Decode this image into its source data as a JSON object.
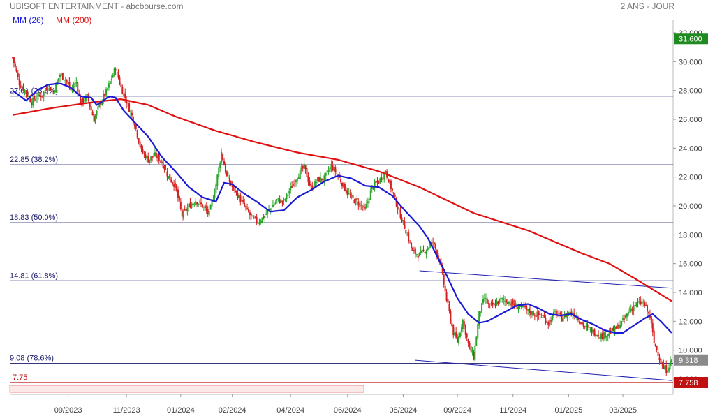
{
  "header": {
    "title": "UBISOFT ENTERTAINMENT - abcbourse.com",
    "period": "2 ANS - JOUR"
  },
  "legend": {
    "ma26_label": "MM (26)",
    "ma200_label": "MM (200)"
  },
  "colors": {
    "ma26": "#1a1ad6",
    "ma200": "#e01010",
    "up": "#2aa52a",
    "down": "#d42020",
    "fib": "#1a1a6a",
    "last_price_badge": "#8a8a8a",
    "high_badge": "#1f8a1f",
    "low_badge": "#c01010"
  },
  "chart_data": {
    "type": "candlestick",
    "title": "UBISOFT ENTERTAINMENT",
    "x_ticks": [
      "09/2023",
      "11/2023",
      "01/2024",
      "02/2024",
      "04/2024",
      "06/2024",
      "08/2024",
      "09/2024",
      "11/2024",
      "01/2025",
      "03/2025"
    ],
    "y_ticks": [
      "32.000",
      "30.000",
      "28.000",
      "26.000",
      "24.000",
      "22.000",
      "20.000",
      "18.000",
      "16.000",
      "14.000",
      "12.000",
      "10.000",
      "8.000"
    ],
    "ylim": [
      7.0,
      33.0
    ],
    "fibonacci_levels": [
      {
        "value": 27.61,
        "label": "27.61",
        "pct": "(23.6%)"
      },
      {
        "value": 22.85,
        "label": "22.85",
        "pct": "(38.2%)"
      },
      {
        "value": 18.83,
        "label": "18.83",
        "pct": "(50.0%)"
      },
      {
        "value": 14.81,
        "label": "14.81",
        "pct": "(61.8%)"
      },
      {
        "value": 9.08,
        "label": "9.08",
        "pct": "(78.6%)"
      }
    ],
    "support_level": {
      "value": 7.75,
      "label": "7.75"
    },
    "price_badges": [
      {
        "value": 31.6,
        "label": "31.600",
        "kind": "high"
      },
      {
        "value": 9.318,
        "label": "9.318",
        "kind": "last"
      },
      {
        "value": 7.758,
        "label": "7.758",
        "kind": "low"
      }
    ],
    "price_path": [
      [
        0,
        30.3
      ],
      [
        5,
        28.5
      ],
      [
        10,
        27.9
      ],
      [
        14,
        27.2
      ],
      [
        18,
        27.6
      ],
      [
        22,
        27.7
      ],
      [
        26,
        28.4
      ],
      [
        30,
        27.9
      ],
      [
        35,
        29.1
      ],
      [
        39,
        28.8
      ],
      [
        43,
        28.0
      ],
      [
        47,
        28.6
      ],
      [
        50,
        27.1
      ],
      [
        55,
        27.6
      ],
      [
        60,
        26.0
      ],
      [
        65,
        27.2
      ],
      [
        70,
        28.1
      ],
      [
        76,
        29.6
      ],
      [
        80,
        28.2
      ],
      [
        85,
        27.0
      ],
      [
        90,
        25.7
      ],
      [
        95,
        23.8
      ],
      [
        100,
        23.2
      ],
      [
        105,
        23.5
      ],
      [
        110,
        23.1
      ],
      [
        115,
        22.0
      ],
      [
        120,
        21.4
      ],
      [
        125,
        19.3
      ],
      [
        130,
        20.0
      ],
      [
        135,
        20.4
      ],
      [
        140,
        20.0
      ],
      [
        145,
        19.4
      ],
      [
        150,
        21.5
      ],
      [
        154,
        23.7
      ],
      [
        158,
        22.0
      ],
      [
        162,
        21.3
      ],
      [
        167,
        20.6
      ],
      [
        172,
        19.8
      ],
      [
        177,
        19.1
      ],
      [
        181,
        18.9
      ],
      [
        186,
        19.3
      ],
      [
        190,
        19.8
      ],
      [
        195,
        20.4
      ],
      [
        200,
        20.3
      ],
      [
        205,
        21.2
      ],
      [
        210,
        22.1
      ],
      [
        215,
        22.7
      ],
      [
        220,
        21.2
      ],
      [
        225,
        21.8
      ],
      [
        230,
        21.9
      ],
      [
        235,
        22.8
      ],
      [
        240,
        22.1
      ],
      [
        245,
        21.2
      ],
      [
        250,
        20.5
      ],
      [
        255,
        20.2
      ],
      [
        260,
        19.7
      ],
      [
        265,
        21.3
      ],
      [
        270,
        21.7
      ],
      [
        275,
        22.4
      ],
      [
        280,
        21.0
      ],
      [
        285,
        19.6
      ],
      [
        290,
        18.3
      ],
      [
        295,
        16.8
      ],
      [
        300,
        16.6
      ],
      [
        305,
        17.0
      ],
      [
        310,
        17.5
      ],
      [
        315,
        16.2
      ],
      [
        320,
        13.5
      ],
      [
        325,
        11.2
      ],
      [
        328,
        10.6
      ],
      [
        332,
        12.1
      ],
      [
        336,
        10.4
      ],
      [
        340,
        9.5
      ],
      [
        344,
        12.5
      ],
      [
        348,
        13.6
      ],
      [
        352,
        13.0
      ],
      [
        356,
        13.2
      ],
      [
        360,
        13.5
      ],
      [
        365,
        13.4
      ],
      [
        370,
        13.1
      ],
      [
        375,
        13.0
      ],
      [
        380,
        12.7
      ],
      [
        385,
        12.5
      ],
      [
        390,
        12.4
      ],
      [
        395,
        11.9
      ],
      [
        400,
        12.6
      ],
      [
        405,
        12.2
      ],
      [
        410,
        12.6
      ],
      [
        415,
        12.5
      ],
      [
        420,
        11.8
      ],
      [
        425,
        11.4
      ],
      [
        430,
        11.2
      ],
      [
        435,
        11.0
      ],
      [
        440,
        11.2
      ],
      [
        445,
        11.5
      ],
      [
        450,
        12.0
      ],
      [
        455,
        12.8
      ],
      [
        460,
        13.2
      ],
      [
        465,
        13.3
      ],
      [
        470,
        12.3
      ],
      [
        473,
        10.5
      ],
      [
        476,
        9.8
      ],
      [
        479,
        8.8
      ],
      [
        482,
        8.6
      ],
      [
        486,
        9.318
      ]
    ],
    "ma26_path": [
      [
        0,
        28.0
      ],
      [
        10,
        27.3
      ],
      [
        18,
        28.0
      ],
      [
        26,
        28.4
      ],
      [
        35,
        28.5
      ],
      [
        43,
        28.2
      ],
      [
        50,
        27.6
      ],
      [
        58,
        27.5
      ],
      [
        62,
        27.0
      ],
      [
        67,
        27.3
      ],
      [
        71,
        27.6
      ],
      [
        76,
        27.5
      ],
      [
        82,
        26.6
      ],
      [
        90,
        25.8
      ],
      [
        100,
        24.8
      ],
      [
        110,
        23.4
      ],
      [
        120,
        22.4
      ],
      [
        130,
        21.3
      ],
      [
        140,
        20.6
      ],
      [
        150,
        20.3
      ],
      [
        156,
        21.6
      ],
      [
        162,
        21.5
      ],
      [
        170,
        20.9
      ],
      [
        180,
        20.3
      ],
      [
        190,
        19.6
      ],
      [
        200,
        19.7
      ],
      [
        210,
        20.6
      ],
      [
        220,
        21.1
      ],
      [
        230,
        21.7
      ],
      [
        240,
        22.1
      ],
      [
        250,
        21.9
      ],
      [
        260,
        21.4
      ],
      [
        270,
        21.3
      ],
      [
        280,
        20.7
      ],
      [
        290,
        19.6
      ],
      [
        300,
        18.6
      ],
      [
        306,
        17.8
      ],
      [
        312,
        16.7
      ],
      [
        320,
        15.2
      ],
      [
        328,
        13.6
      ],
      [
        336,
        12.5
      ],
      [
        344,
        11.9
      ],
      [
        350,
        12.0
      ],
      [
        358,
        12.4
      ],
      [
        366,
        12.8
      ],
      [
        372,
        13.1
      ],
      [
        380,
        13.2
      ],
      [
        388,
        12.9
      ],
      [
        396,
        12.5
      ],
      [
        404,
        12.4
      ],
      [
        412,
        12.5
      ],
      [
        420,
        12.1
      ],
      [
        428,
        11.8
      ],
      [
        436,
        11.4
      ],
      [
        444,
        11.2
      ],
      [
        450,
        11.2
      ],
      [
        458,
        11.7
      ],
      [
        466,
        12.2
      ],
      [
        472,
        12.5
      ],
      [
        478,
        12.0
      ],
      [
        486,
        11.2
      ]
    ],
    "ma200_path": [
      [
        0,
        26.3
      ],
      [
        30,
        26.8
      ],
      [
        60,
        27.2
      ],
      [
        80,
        27.4
      ],
      [
        100,
        27.0
      ],
      [
        120,
        26.2
      ],
      [
        150,
        25.2
      ],
      [
        180,
        24.4
      ],
      [
        210,
        23.7
      ],
      [
        240,
        23.2
      ],
      [
        270,
        22.4
      ],
      [
        300,
        21.3
      ],
      [
        320,
        20.4
      ],
      [
        340,
        19.5
      ],
      [
        360,
        18.9
      ],
      [
        380,
        18.3
      ],
      [
        400,
        17.5
      ],
      [
        420,
        16.7
      ],
      [
        440,
        16.0
      ],
      [
        460,
        14.9
      ],
      [
        486,
        13.4
      ]
    ],
    "channel_lines": [
      {
        "from": [
          300,
          15.5
        ],
        "to": [
          486,
          14.3
        ]
      },
      {
        "from": [
          297,
          9.3
        ],
        "to": [
          486,
          7.9
        ]
      }
    ]
  }
}
